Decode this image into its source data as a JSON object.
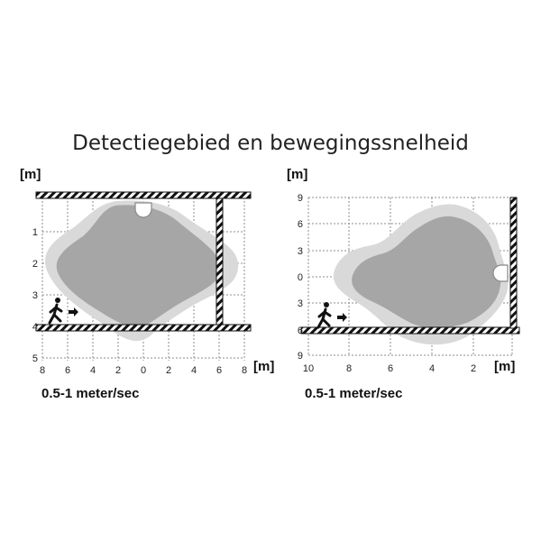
{
  "title": "Detectiegebied en bewegingssnelheid",
  "colors": {
    "outer_zone": "#d9d9d9",
    "inner_zone": "#a6a6a6",
    "grid": "#8c8c8c",
    "wall": "#111111"
  },
  "diagrams": [
    {
      "view": "top",
      "y_unit": "[m]",
      "x_unit": "[m]",
      "y_ticks": [
        "1",
        "2",
        "3",
        "4",
        "5"
      ],
      "x_ticks": [
        "8",
        "6",
        "4",
        "2",
        "0",
        "2",
        "4",
        "6",
        "8"
      ],
      "speed_label": "0.5-1 meter/sec",
      "icons": [
        "walking-person-icon",
        "arrow-right-icon",
        "sensor-icon"
      ]
    },
    {
      "view": "side",
      "y_unit": "[m]",
      "x_unit": "[m]",
      "y_ticks": [
        "9",
        "6",
        "3",
        "0",
        "3",
        "6",
        "9"
      ],
      "x_ticks": [
        "10",
        "8",
        "6",
        "4",
        "2"
      ],
      "speed_label": "0.5-1 meter/sec",
      "icons": [
        "walking-person-icon",
        "arrow-right-icon",
        "sensor-icon"
      ]
    }
  ]
}
